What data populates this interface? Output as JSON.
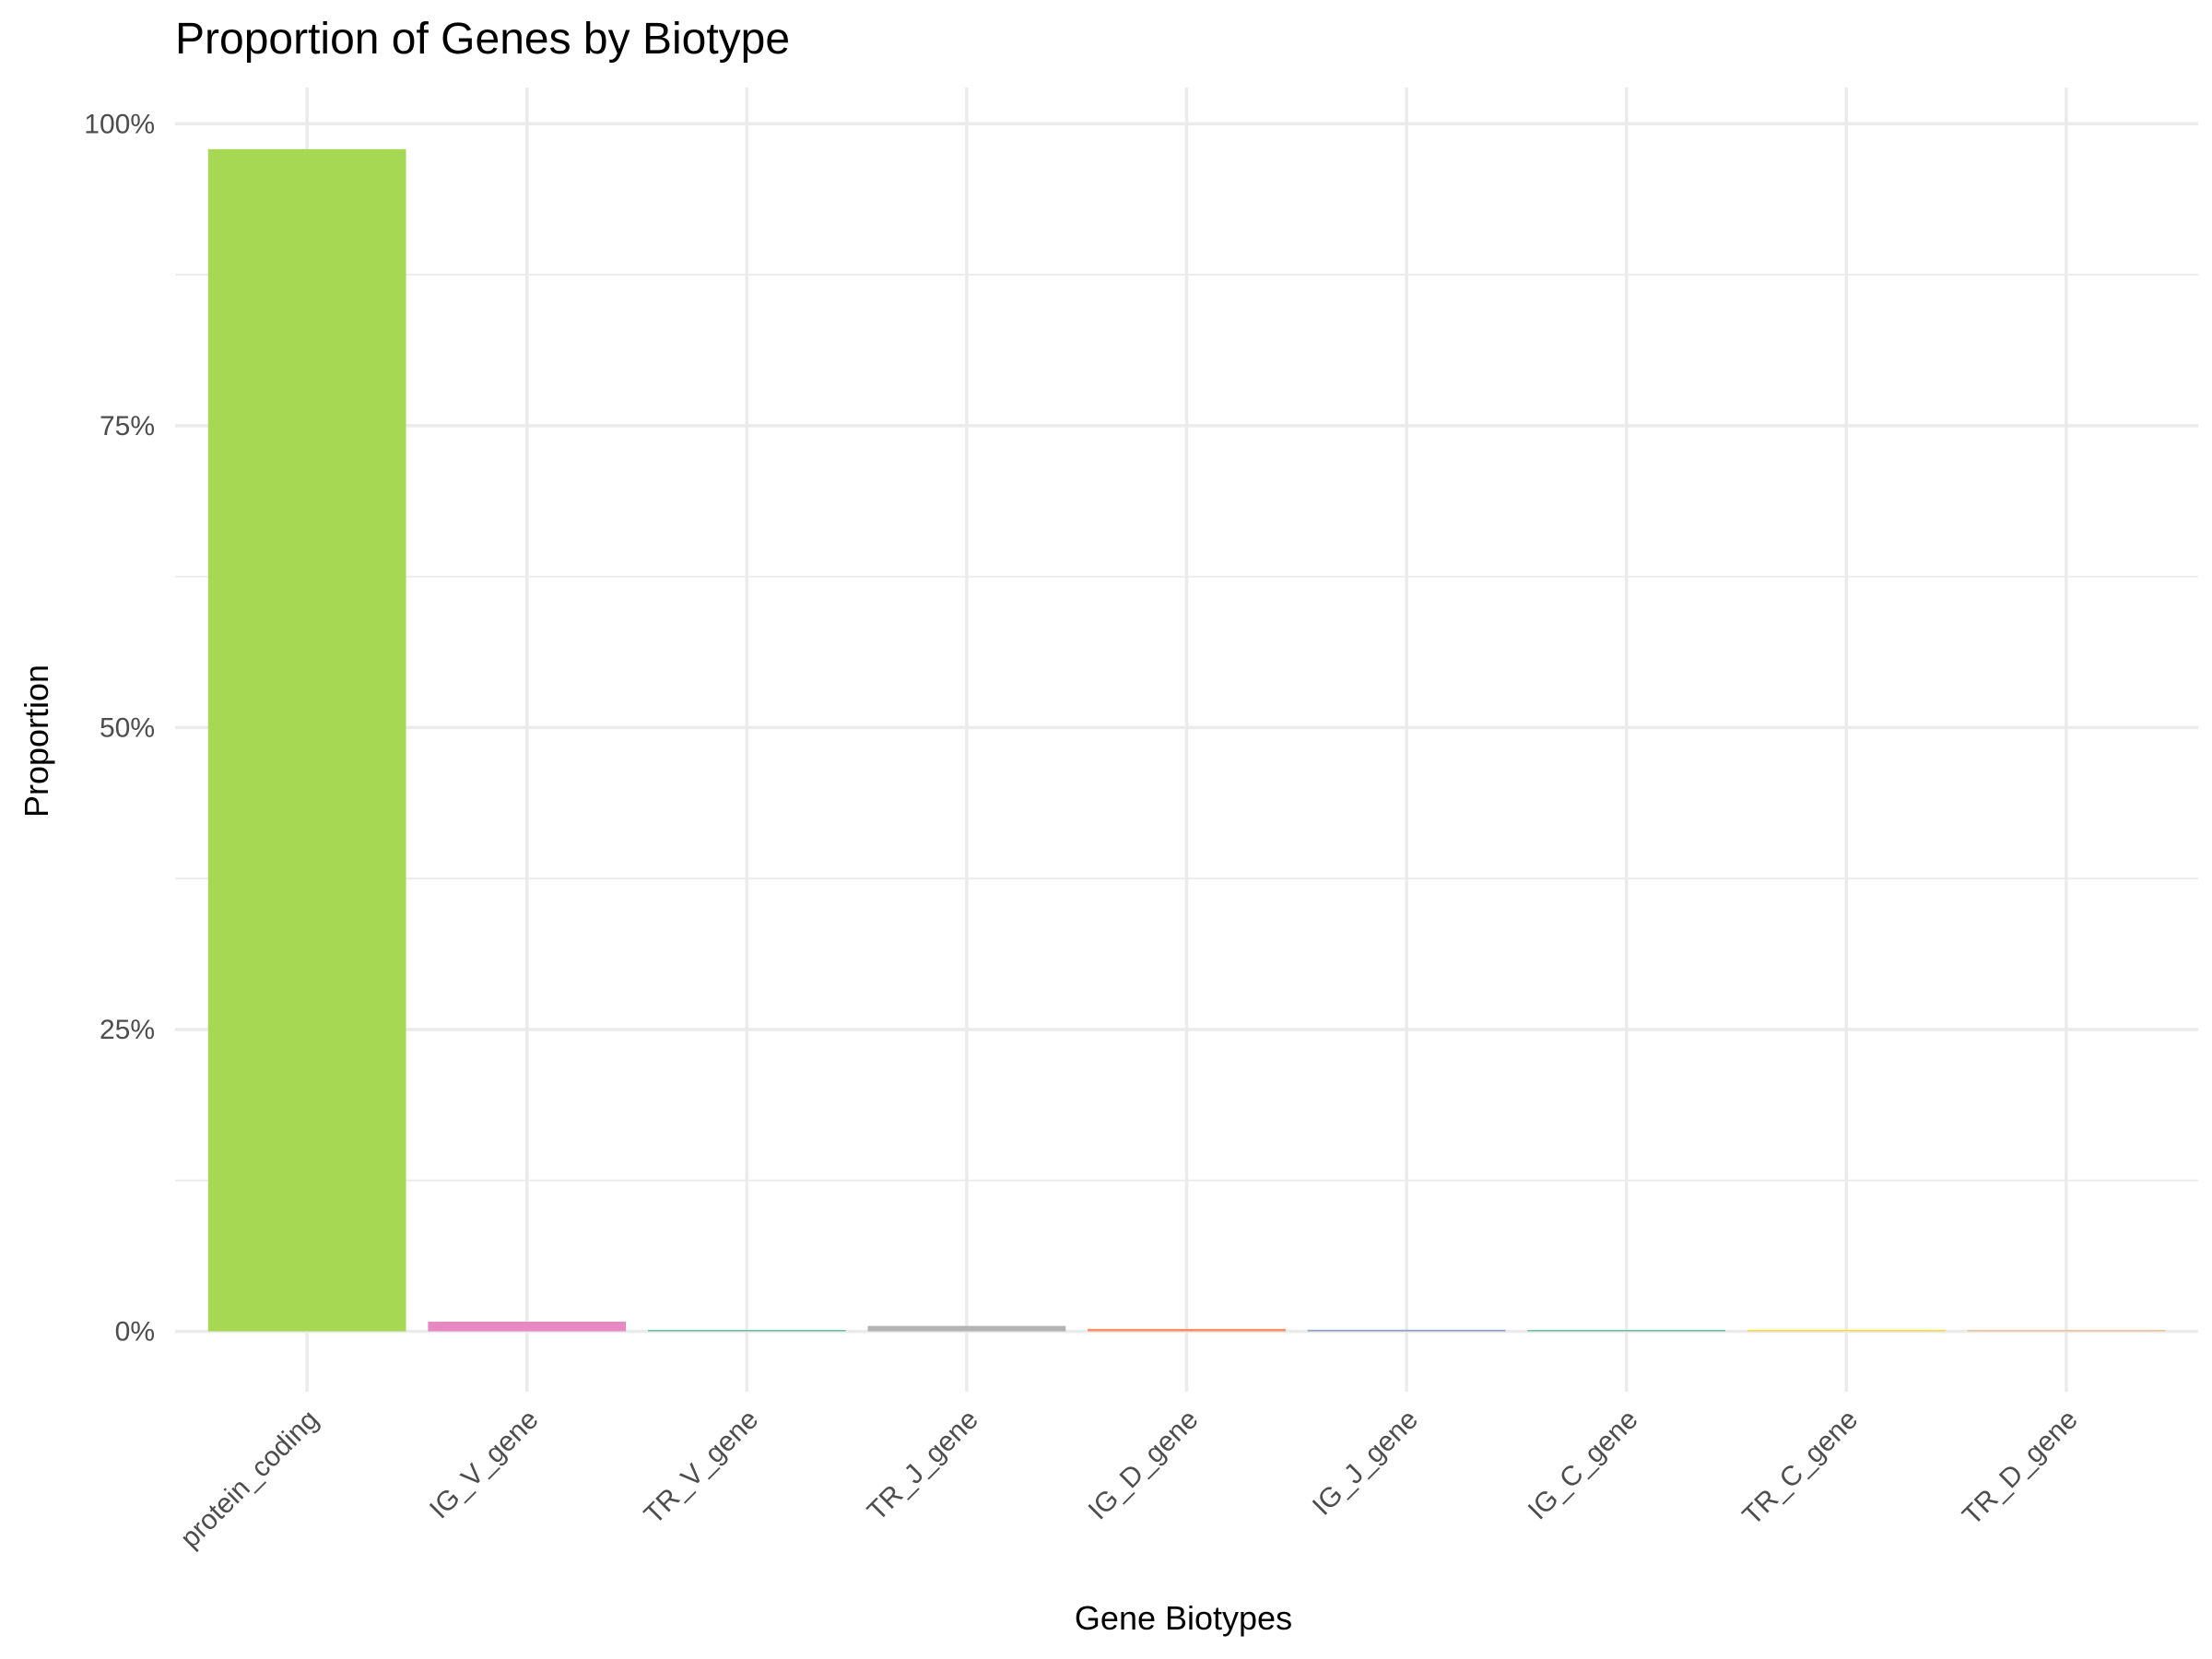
{
  "chart_data": {
    "type": "bar",
    "title": "Proportion of Genes by Biotype",
    "xlabel": "Gene Biotypes",
    "ylabel": "Proportion",
    "ylim": [
      -0.05,
      1.03
    ],
    "yticks": [
      0,
      0.25,
      0.5,
      0.75,
      1.0
    ],
    "ytick_labels": [
      "0%",
      "25%",
      "50%",
      "75%",
      "100%"
    ],
    "grid": true,
    "legend": "none",
    "categories": [
      "protein_coding",
      "IG_V_gene",
      "TR_V_gene",
      "TR_J_gene",
      "IG_D_gene",
      "IG_J_gene",
      "IG_C_gene",
      "TR_C_gene",
      "TR_D_gene"
    ],
    "values": [
      0.979,
      0.008,
      0.0005,
      0.0045,
      0.002,
      0.0013,
      0.001,
      0.0008,
      0.0004
    ],
    "colors": [
      "#a6d854",
      "#e78ac3",
      "#66c2a5",
      "#b3b3b3",
      "#fc8d62",
      "#8da0cb",
      "#66c2a5",
      "#ffd92f",
      "#e5c494"
    ]
  }
}
